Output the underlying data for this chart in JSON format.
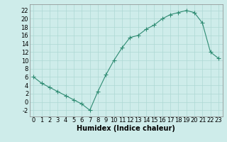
{
  "x": [
    0,
    1,
    2,
    3,
    4,
    5,
    6,
    7,
    8,
    9,
    10,
    11,
    12,
    13,
    14,
    15,
    16,
    17,
    18,
    19,
    20,
    21,
    22,
    23
  ],
  "y": [
    6,
    4.5,
    3.5,
    2.5,
    1.5,
    0.5,
    -0.5,
    -2,
    2.5,
    6.5,
    10,
    13,
    15.5,
    16,
    17.5,
    18.5,
    20,
    21,
    21.5,
    22,
    21.5,
    19,
    12,
    10.5
  ],
  "line_color": "#2e8b72",
  "marker": "+",
  "marker_size": 4,
  "bg_color": "#ceecea",
  "grid_color": "#aed8d4",
  "xlabel": "Humidex (Indice chaleur)",
  "xlabel_fontsize": 7,
  "tick_fontsize": 6,
  "xlim": [
    -0.5,
    23.5
  ],
  "ylim": [
    -3.5,
    23.5
  ],
  "yticks": [
    -2,
    0,
    2,
    4,
    6,
    8,
    10,
    12,
    14,
    16,
    18,
    20,
    22
  ],
  "xticks": [
    0,
    1,
    2,
    3,
    4,
    5,
    6,
    7,
    8,
    9,
    10,
    11,
    12,
    13,
    14,
    15,
    16,
    17,
    18,
    19,
    20,
    21,
    22,
    23
  ]
}
